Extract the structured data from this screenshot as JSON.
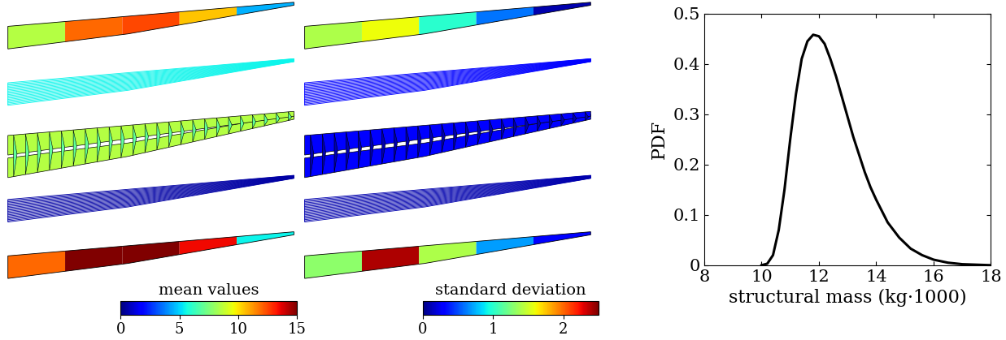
{
  "chart_data": [
    {
      "type": "wing_map",
      "colorbar_label": "mean values",
      "colorbar_range": [
        0,
        15
      ],
      "colorbar_ticks": [
        0,
        5,
        10,
        15
      ],
      "tick_labels": false,
      "upper_skin": [
        8.5,
        12.0,
        12.5,
        10.5,
        4.5
      ],
      "upper_stringers": 5.5,
      "spars": 8.5,
      "ribs": 7.0,
      "lower_stringers": 0.5,
      "lower_skin": [
        12.0,
        15.0,
        15.0,
        13.5,
        5.5
      ]
    },
    {
      "type": "wing_map",
      "colorbar_label": "standard deviation",
      "colorbar_range": [
        0,
        2.5
      ],
      "colorbar_ticks": [
        0,
        1,
        2
      ],
      "tick_labels": false,
      "upper_skin": [
        1.4,
        1.6,
        1.0,
        0.6,
        0.1
      ],
      "upper_stringers": 0.3,
      "spars": 0.3,
      "ribs": 0.1,
      "lower_stringers": 0.1,
      "lower_skin": [
        1.3,
        2.4,
        1.4,
        0.7,
        0.3
      ]
    },
    {
      "type": "line",
      "xlabel": "structural mass (kg·1000)",
      "ylabel": "PDF",
      "color": "#000000",
      "x": [
        10.0,
        10.2,
        10.4,
        10.6,
        10.8,
        11.0,
        11.2,
        11.4,
        11.6,
        11.8,
        12.0,
        12.2,
        12.4,
        12.6,
        12.8,
        13.0,
        13.2,
        13.4,
        13.6,
        13.8,
        14.0,
        14.4,
        14.8,
        15.2,
        15.6,
        16.0,
        16.5,
        17.0,
        18.0
      ],
      "values": [
        0.0,
        0.003,
        0.02,
        0.07,
        0.15,
        0.25,
        0.34,
        0.41,
        0.445,
        0.458,
        0.455,
        0.44,
        0.41,
        0.375,
        0.335,
        0.295,
        0.255,
        0.22,
        0.185,
        0.155,
        0.13,
        0.085,
        0.055,
        0.033,
        0.02,
        0.011,
        0.005,
        0.002,
        0.0
      ],
      "xlim": [
        8,
        18
      ],
      "ylim": [
        0,
        0.5
      ],
      "xticks": [
        8,
        10,
        12,
        14,
        16,
        18
      ],
      "yticks": [
        0,
        0.1,
        0.2,
        0.3,
        0.4,
        0.5
      ]
    }
  ]
}
